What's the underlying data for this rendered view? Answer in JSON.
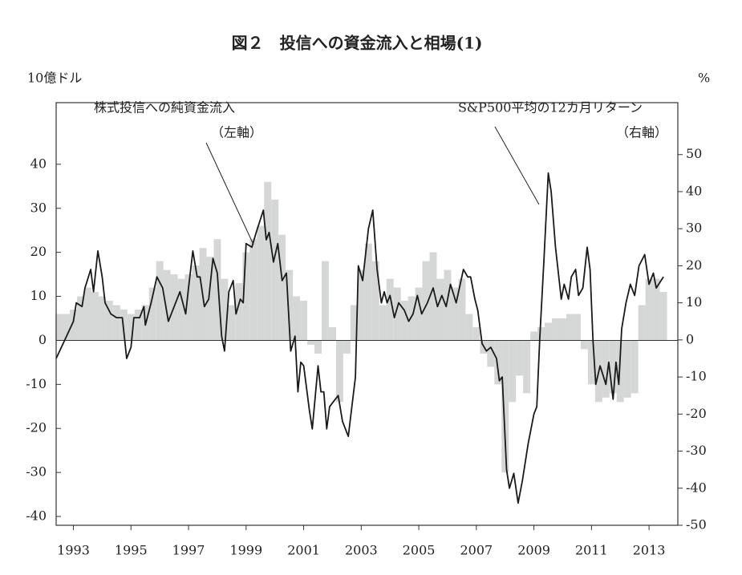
{
  "chart_data": {
    "type": "combo",
    "title": "図２　投信への資金流入と相場(1)",
    "ylabel": "10億ドル",
    "y2label": "%",
    "annotations": [
      "（左軸）",
      "（右軸）"
    ],
    "xlim": [
      1992.4,
      2014.0
    ],
    "xticks": [
      1993,
      1995,
      1997,
      1999,
      2001,
      2003,
      2005,
      2007,
      2009,
      2011,
      2013
    ],
    "ylim": [
      -42,
      54
    ],
    "yticks": [
      -40,
      -30,
      -20,
      -10,
      0,
      10,
      20,
      30,
      40
    ],
    "y2lim": [
      -50,
      64
    ],
    "y2ticks": [
      -50,
      -40,
      -30,
      -20,
      -10,
      0,
      10,
      20,
      30,
      40,
      50
    ],
    "series": [
      {
        "name": "株式投信への純資金流入",
        "type": "bar",
        "color": "#d5d7d6",
        "x": [
          1992.5,
          1992.75,
          1993.0,
          1993.25,
          1993.5,
          1993.75,
          1994.0,
          1994.25,
          1994.5,
          1994.75,
          1995.0,
          1995.25,
          1995.5,
          1995.75,
          1996.0,
          1996.25,
          1996.5,
          1996.75,
          1997.0,
          1997.25,
          1997.5,
          1997.75,
          1998.0,
          1998.25,
          1998.5,
          1998.75,
          1999.0,
          1999.25,
          1999.5,
          1999.75,
          2000.0,
          2000.25,
          2000.5,
          2000.75,
          2001.0,
          2001.25,
          2001.5,
          2001.75,
          2002.0,
          2002.25,
          2002.5,
          2002.75,
          2003.0,
          2003.25,
          2003.5,
          2003.75,
          2004.0,
          2004.25,
          2004.5,
          2004.75,
          2005.0,
          2005.25,
          2005.5,
          2005.75,
          2006.0,
          2006.25,
          2006.5,
          2006.75,
          2007.0,
          2007.25,
          2007.5,
          2007.75,
          2008.0,
          2008.25,
          2008.5,
          2008.75,
          2009.0,
          2009.25,
          2009.5,
          2009.75,
          2010.0,
          2010.25,
          2010.5,
          2010.75,
          2011.0,
          2011.25,
          2011.5,
          2011.75,
          2012.0,
          2012.25,
          2012.5,
          2012.75,
          2013.0,
          2013.25,
          2013.5
        ],
        "values": [
          6,
          6,
          7,
          10,
          12,
          11,
          10,
          9,
          8,
          7,
          6,
          7,
          8,
          12,
          18,
          16,
          15,
          14,
          15,
          17,
          21,
          19,
          23,
          14,
          8,
          13,
          20,
          23,
          26,
          36,
          32,
          24,
          16,
          10,
          9,
          -1,
          -3,
          18,
          3,
          -14,
          -3,
          8,
          16,
          22,
          18,
          8,
          14,
          12,
          9,
          10,
          12,
          18,
          20,
          14,
          16,
          12,
          14,
          6,
          3,
          -3,
          -6,
          -10,
          -30,
          -14,
          -8,
          -12,
          2,
          3,
          4,
          5,
          5,
          6,
          6,
          -2,
          -10,
          -14,
          -13,
          -12,
          -14,
          -13,
          -12,
          8,
          14,
          14,
          11
        ]
      },
      {
        "name": "S&P500平均の12カ月リターン",
        "type": "line",
        "axis": "y2",
        "color": "#1a1a1a",
        "x": [
          1992.4,
          1992.7,
          1993.0,
          1993.1,
          1993.3,
          1993.4,
          1993.6,
          1993.7,
          1993.85,
          1994.0,
          1994.1,
          1994.3,
          1994.5,
          1994.7,
          1994.85,
          1995.0,
          1995.1,
          1995.3,
          1995.45,
          1995.5,
          1995.7,
          1995.9,
          1996.1,
          1996.3,
          1996.5,
          1996.7,
          1996.9,
          1997.0,
          1997.15,
          1997.3,
          1997.4,
          1997.55,
          1997.7,
          1997.85,
          1998.0,
          1998.15,
          1998.25,
          1998.4,
          1998.55,
          1998.65,
          1998.8,
          1998.9,
          1999.0,
          1999.2,
          1999.35,
          1999.6,
          1999.7,
          1999.8,
          1999.95,
          2000.1,
          2000.25,
          2000.4,
          2000.55,
          2000.7,
          2000.8,
          2000.9,
          2001.0,
          2001.2,
          2001.3,
          2001.5,
          2001.6,
          2001.7,
          2001.8,
          2001.9,
          2002.1,
          2002.2,
          2002.35,
          2002.55,
          2002.8,
          2002.9,
          2003.05,
          2003.25,
          2003.4,
          2003.55,
          2003.7,
          2003.8,
          2003.9,
          2004.0,
          2004.15,
          2004.3,
          2004.5,
          2004.65,
          2004.8,
          2004.95,
          2005.1,
          2005.3,
          2005.5,
          2005.65,
          2005.8,
          2005.95,
          2006.1,
          2006.3,
          2006.55,
          2006.7,
          2006.8,
          2006.95,
          2007.05,
          2007.2,
          2007.35,
          2007.5,
          2007.7,
          2007.8,
          2007.9,
          2008.05,
          2008.15,
          2008.3,
          2008.45,
          2008.6,
          2008.8,
          2009.0,
          2009.1,
          2009.2,
          2009.35,
          2009.5,
          2009.6,
          2009.75,
          2009.95,
          2010.05,
          2010.2,
          2010.3,
          2010.45,
          2010.55,
          2010.7,
          2010.85,
          2010.95,
          2011.05,
          2011.15,
          2011.3,
          2011.5,
          2011.6,
          2011.75,
          2011.85,
          2011.95,
          2012.05,
          2012.2,
          2012.35,
          2012.5,
          2012.65,
          2012.85,
          2013.0,
          2013.15,
          2013.25,
          2013.5
        ],
        "values": [
          -5,
          0,
          5,
          10,
          9,
          14,
          19,
          13,
          24,
          17,
          10,
          7,
          6,
          6,
          -5,
          -2,
          6,
          6,
          9,
          4,
          10,
          17,
          14,
          5,
          9,
          13,
          7,
          14,
          24,
          17,
          17,
          9,
          11,
          22,
          18,
          1,
          -3,
          13,
          16,
          7,
          11,
          10,
          26,
          25,
          29,
          35,
          27,
          29,
          21,
          26,
          16,
          18,
          -3,
          1,
          -14,
          -6,
          -7,
          -19,
          -24,
          -7,
          -14,
          -14,
          -24,
          -18,
          -16,
          -15,
          -22,
          -26,
          -10,
          20,
          16,
          30,
          35,
          19,
          10,
          13,
          10,
          12,
          6,
          10,
          8,
          5,
          7,
          12,
          7,
          10,
          14,
          9,
          12,
          9,
          15,
          10,
          19,
          17,
          17,
          11,
          8,
          -1,
          -3,
          -2,
          -5,
          -11,
          -10,
          -35,
          -40,
          -36,
          -44,
          -38,
          -28,
          -20,
          -18,
          0,
          22,
          45,
          40,
          25,
          11,
          15,
          11,
          17,
          19,
          12,
          14,
          25,
          19,
          0,
          -12,
          -7,
          -12,
          -6,
          -16,
          -6,
          -12,
          3,
          10,
          15,
          12,
          20,
          23,
          15,
          18,
          14,
          17
        ]
      }
    ]
  }
}
